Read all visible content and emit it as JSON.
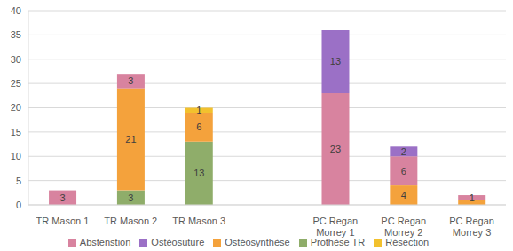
{
  "chart_data": {
    "type": "bar",
    "stacked": true,
    "categories": [
      "TR Mason 1",
      "TR Mason 2",
      "TR Mason 3",
      null,
      "PC Regan Morrey 1",
      "PC Regan Morrey 2",
      "PC Regan Morrey 3"
    ],
    "series": [
      {
        "name": "Prothèse TR",
        "color": "#8fad6a",
        "values": [
          null,
          3,
          13,
          null,
          null,
          null,
          null
        ]
      },
      {
        "name": "Ostéosynthèse",
        "color": "#f4a23c",
        "values": [
          null,
          21,
          6,
          null,
          null,
          4,
          1
        ],
        "value_labels": [
          null,
          "21",
          "6",
          null,
          null,
          "4",
          null
        ]
      },
      {
        "name": "Résection",
        "color": "#f2c12e",
        "values": [
          null,
          null,
          1,
          null,
          null,
          null,
          null
        ]
      },
      {
        "name": "Abstenstion",
        "color": "#d8839f",
        "values": [
          3,
          3,
          null,
          null,
          23,
          6,
          1
        ]
      },
      {
        "name": "Ostéosuture",
        "color": "#9b70c6",
        "values": [
          null,
          null,
          null,
          null,
          13,
          2,
          null
        ]
      }
    ],
    "ylim": [
      0,
      40
    ],
    "yticks": [
      0,
      5,
      10,
      15,
      20,
      25,
      30,
      35,
      40
    ],
    "grid": true,
    "legend": "bottom",
    "data_labels": true
  }
}
